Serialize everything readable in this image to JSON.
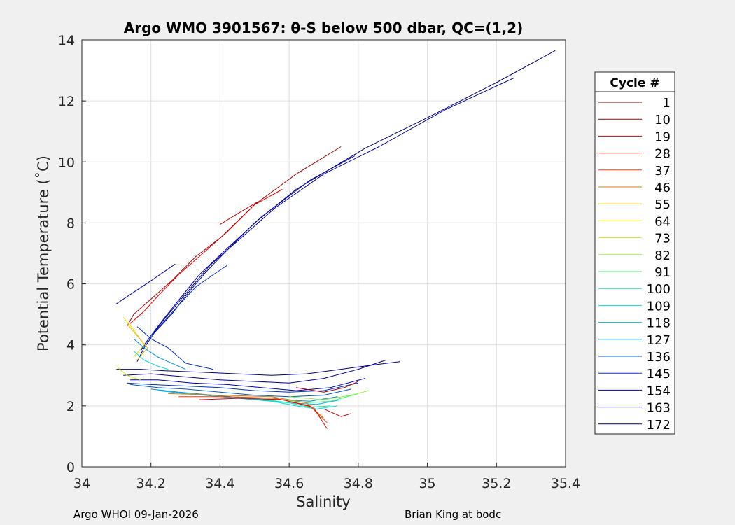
{
  "chart_data": {
    "type": "line",
    "title": "Argo WMO 3901567: θ-S below 500 dbar,  QC=(1,2)",
    "xlabel": "Salinity",
    "ylabel": "Potential Temperature (˚C)",
    "xlim": [
      34,
      35.4
    ],
    "ylim": [
      0,
      14
    ],
    "xticks": [
      "34",
      "34.2",
      "34.4",
      "34.6",
      "34.8",
      "35",
      "35.2",
      "35.4"
    ],
    "yticks": [
      "0",
      "2",
      "4",
      "6",
      "8",
      "10",
      "12",
      "14"
    ],
    "grid": true,
    "legend_position": "right",
    "legend_title": "Cycle #",
    "legend": [
      {
        "label": "1",
        "color": "#7f0000"
      },
      {
        "label": "10",
        "color": "#a00000"
      },
      {
        "label": "19",
        "color": "#c80000"
      },
      {
        "label": "28",
        "color": "#e60000"
      },
      {
        "label": "37",
        "color": "#f03c00"
      },
      {
        "label": "46",
        "color": "#d28200"
      },
      {
        "label": "55",
        "color": "#e6b400"
      },
      {
        "label": "64",
        "color": "#f0e600"
      },
      {
        "label": "73",
        "color": "#c8f000"
      },
      {
        "label": "82",
        "color": "#8cf03c"
      },
      {
        "label": "91",
        "color": "#46f078"
      },
      {
        "label": "100",
        "color": "#14e6aa"
      },
      {
        "label": "109",
        "color": "#00dcdc"
      },
      {
        "label": "118",
        "color": "#00b4e6"
      },
      {
        "label": "127",
        "color": "#008cd2"
      },
      {
        "label": "136",
        "color": "#005ac8"
      },
      {
        "label": "145",
        "color": "#0032c8"
      },
      {
        "label": "154",
        "color": "#0000b4"
      },
      {
        "label": "163",
        "color": "#000096"
      },
      {
        "label": "172",
        "color": "#00007f"
      }
    ],
    "series": [
      {
        "color": "#00007f",
        "x": [
          35.37,
          35.2,
          35.0,
          34.82,
          34.62,
          34.5,
          34.42,
          34.36,
          34.3,
          34.26,
          34.21,
          34.18,
          34.16
        ],
        "y": [
          13.65,
          12.6,
          11.45,
          10.45,
          9.1,
          8.0,
          7.1,
          6.4,
          5.6,
          5.0,
          4.4,
          3.9,
          3.45
        ]
      },
      {
        "color": "#000096",
        "x": [
          35.25,
          35.05,
          34.86,
          34.7,
          34.56,
          34.45,
          34.37,
          34.31,
          34.25,
          34.2,
          34.17
        ],
        "y": [
          12.75,
          11.7,
          10.5,
          9.6,
          8.5,
          7.4,
          6.6,
          5.8,
          5.0,
          4.3,
          3.8
        ]
      },
      {
        "color": "#0000b4",
        "x": [
          34.79,
          34.66,
          34.52,
          34.41,
          34.34,
          34.29,
          34.24,
          34.2
        ],
        "y": [
          10.2,
          9.4,
          8.2,
          7.05,
          6.3,
          5.6,
          4.9,
          4.3
        ]
      },
      {
        "color": "#0032c8",
        "x": [
          34.42,
          34.38,
          34.33,
          34.28,
          34.24,
          34.2,
          34.17
        ],
        "y": [
          6.6,
          6.3,
          5.9,
          5.3,
          4.8,
          4.3,
          3.85
        ]
      },
      {
        "color": "#c80000",
        "x": [
          34.51,
          34.45,
          34.4
        ],
        "y": [
          8.7,
          8.3,
          7.95
        ]
      },
      {
        "color": "#e60000",
        "x": [
          34.58,
          34.5,
          34.42,
          34.35,
          34.28,
          34.22,
          34.18,
          34.14
        ],
        "y": [
          9.1,
          8.6,
          7.7,
          7.0,
          6.3,
          5.6,
          5.1,
          4.7
        ]
      },
      {
        "color": "#a00000",
        "x": [
          34.75,
          34.62,
          34.5,
          34.4,
          34.33,
          34.26,
          34.2,
          34.15,
          34.13
        ],
        "y": [
          10.5,
          9.6,
          8.6,
          7.5,
          6.9,
          6.1,
          5.5,
          5.0,
          4.6
        ]
      },
      {
        "color": "#0000b4",
        "x": [
          34.1,
          34.14,
          34.2,
          34.27
        ],
        "y": [
          5.35,
          5.65,
          6.1,
          6.65
        ]
      },
      {
        "color": "#00007f",
        "x": [
          34.1,
          34.17,
          34.24,
          34.35,
          34.45,
          34.55,
          34.65,
          34.75,
          34.85,
          34.92
        ],
        "y": [
          3.2,
          3.2,
          3.15,
          3.1,
          3.05,
          3.0,
          3.05,
          3.2,
          3.35,
          3.45
        ]
      },
      {
        "color": "#000096",
        "x": [
          34.12,
          34.2,
          34.3,
          34.4,
          34.5,
          34.6,
          34.7,
          34.8,
          34.88
        ],
        "y": [
          3.0,
          3.05,
          2.95,
          2.85,
          2.8,
          2.75,
          2.9,
          3.2,
          3.5
        ]
      },
      {
        "color": "#0000b4",
        "x": [
          34.14,
          34.22,
          34.32,
          34.42,
          34.52,
          34.62,
          34.72,
          34.82
        ],
        "y": [
          2.85,
          2.85,
          2.75,
          2.7,
          2.6,
          2.5,
          2.6,
          2.9
        ]
      },
      {
        "color": "#0032c8",
        "x": [
          34.13,
          34.2,
          34.3,
          34.4,
          34.5,
          34.6,
          34.7,
          34.8
        ],
        "y": [
          2.75,
          2.7,
          2.65,
          2.6,
          2.5,
          2.45,
          2.5,
          2.75
        ]
      },
      {
        "color": "#005ac8",
        "x": [
          34.14,
          34.22,
          34.3,
          34.4,
          34.5,
          34.6,
          34.7,
          34.78
        ],
        "y": [
          2.7,
          2.6,
          2.55,
          2.45,
          2.35,
          2.3,
          2.35,
          2.55
        ]
      },
      {
        "color": "#008cd2",
        "x": [
          34.2,
          34.28,
          34.38,
          34.48,
          34.58,
          34.66,
          34.74
        ],
        "y": [
          2.55,
          2.45,
          2.35,
          2.25,
          2.2,
          2.15,
          2.3
        ]
      },
      {
        "color": "#00b4e6",
        "x": [
          34.22,
          34.3,
          34.4,
          34.5,
          34.6,
          34.68,
          34.75
        ],
        "y": [
          2.5,
          2.4,
          2.3,
          2.2,
          2.1,
          2.05,
          2.2
        ]
      },
      {
        "color": "#00dcdc",
        "x": [
          34.45,
          34.55,
          34.62,
          34.68,
          34.74
        ],
        "y": [
          2.3,
          2.15,
          2.0,
          1.9,
          2.0
        ]
      },
      {
        "color": "#14e6aa",
        "x": [
          34.5,
          34.6,
          34.66,
          34.72
        ],
        "y": [
          2.25,
          2.1,
          1.95,
          2.0
        ]
      },
      {
        "color": "#46f078",
        "x": [
          34.55,
          34.65,
          34.72,
          34.8
        ],
        "y": [
          2.25,
          2.1,
          2.15,
          2.4
        ]
      },
      {
        "color": "#8cf03c",
        "x": [
          34.6,
          34.7,
          34.78,
          34.83
        ],
        "y": [
          2.3,
          2.2,
          2.35,
          2.5
        ]
      },
      {
        "color": "#c8f000",
        "x": [
          34.1,
          34.13,
          34.17
        ],
        "y": [
          3.3,
          3.0,
          2.85
        ]
      },
      {
        "color": "#f0e600",
        "x": [
          34.12,
          34.15,
          34.18,
          34.15
        ],
        "y": [
          4.9,
          4.5,
          4.0,
          3.6
        ]
      },
      {
        "color": "#e6b400",
        "x": [
          34.13,
          34.16,
          34.19,
          34.16
        ],
        "y": [
          4.7,
          4.3,
          3.9,
          3.5
        ]
      },
      {
        "color": "#d28200",
        "x": [
          34.25,
          34.4,
          34.55,
          34.65,
          34.7
        ],
        "y": [
          2.4,
          2.35,
          2.3,
          2.1,
          1.6
        ]
      },
      {
        "color": "#f03c00",
        "x": [
          34.28,
          34.42,
          34.56,
          34.66,
          34.71
        ],
        "y": [
          2.3,
          2.3,
          2.25,
          2.0,
          1.45
        ]
      },
      {
        "color": "#e60000",
        "x": [
          34.34,
          34.46,
          34.58,
          34.67,
          34.71
        ],
        "y": [
          2.2,
          2.25,
          2.2,
          1.95,
          1.25
        ]
      },
      {
        "color": "#c80000",
        "x": [
          34.7,
          34.75,
          34.78
        ],
        "y": [
          1.9,
          1.65,
          1.75
        ]
      },
      {
        "color": "#a00000",
        "x": [
          34.62,
          34.7,
          34.76,
          34.8
        ],
        "y": [
          2.6,
          2.45,
          2.6,
          2.8
        ]
      },
      {
        "color": "#0032c8",
        "x": [
          34.16,
          34.2,
          34.25,
          34.28,
          34.3,
          34.34,
          34.38
        ],
        "y": [
          4.6,
          4.2,
          3.9,
          3.6,
          3.4,
          3.3,
          3.2
        ]
      },
      {
        "color": "#008cd2",
        "x": [
          34.15,
          34.18,
          34.22,
          34.26,
          34.3
        ],
        "y": [
          4.2,
          3.9,
          3.6,
          3.4,
          3.2
        ]
      },
      {
        "color": "#00dcdc",
        "x": [
          34.15,
          34.18,
          34.22,
          34.25
        ],
        "y": [
          3.8,
          3.5,
          3.3,
          3.2
        ]
      }
    ]
  },
  "footer": {
    "left": "Argo WHOI 09-Jan-2026",
    "right": "Brian King at bodc"
  }
}
